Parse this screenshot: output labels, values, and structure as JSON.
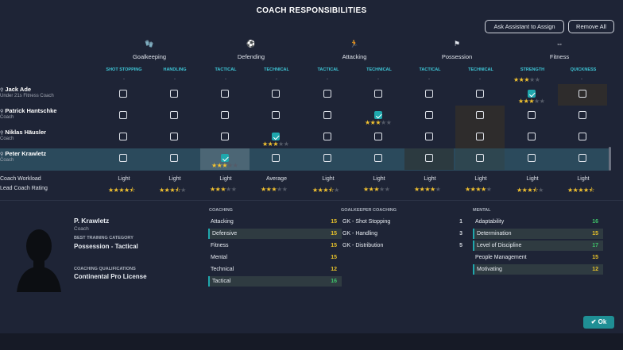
{
  "title": "COACH RESPONSIBILITIES",
  "buttons": {
    "ask": "Ask Assistant to Assign",
    "remove": "Remove All",
    "ok": "Ok"
  },
  "categories": [
    {
      "label": "Goalkeeping",
      "icon": "goalkeeper-icon"
    },
    {
      "label": "Defending",
      "icon": "tackle-icon"
    },
    {
      "label": "Attacking",
      "icon": "running-icon"
    },
    {
      "label": "Possession",
      "icon": "possession-icon"
    },
    {
      "label": "Fitness",
      "icon": "dumbbell-icon"
    }
  ],
  "subcategories": [
    "SHOT STOPPING",
    "HANDLING",
    "TACTICAL",
    "TECHNICAL",
    "TACTICAL",
    "TECHNICAL",
    "TACTICAL",
    "TECHNICAL",
    "STRENGTH",
    "QUICKNESS"
  ],
  "coaches": [
    {
      "name": "Jack Ade",
      "role": "Under 21s Fitness Coach",
      "checked": [
        false,
        false,
        false,
        false,
        false,
        false,
        false,
        false,
        true,
        false
      ]
    },
    {
      "name": "Patrick Hantschke",
      "role": "Coach",
      "checked": [
        false,
        false,
        false,
        false,
        false,
        true,
        false,
        false,
        false,
        false
      ]
    },
    {
      "name": "Niklas Häusler",
      "role": "Coach",
      "checked": [
        false,
        false,
        false,
        true,
        false,
        false,
        false,
        false,
        false,
        false
      ]
    },
    {
      "name": "Peter Krawletz",
      "role": "Coach",
      "checked": [
        false,
        false,
        true,
        false,
        false,
        false,
        false,
        false,
        false,
        false
      ]
    }
  ],
  "footer": {
    "workload_label": "Coach Workload",
    "rating_label": "Lead Coach Rating",
    "workload": [
      "Light",
      "Light",
      "Light",
      "Average",
      "Light",
      "Light",
      "Light",
      "Light",
      "Light",
      "Light"
    ],
    "rating": [
      4.5,
      3.5,
      3,
      3,
      3.5,
      3,
      4,
      4,
      3.5,
      4.5
    ]
  },
  "profile": {
    "name": "P. Krawletz",
    "role": "Coach",
    "best_cat_label": "BEST TRAINING CATEGORY",
    "best_cat": "Possession - Tactical",
    "qual_label": "COACHING QUALIFICATIONS",
    "qual": "Continental Pro License"
  },
  "coaching": {
    "header": "COACHING",
    "items": [
      {
        "name": "Attacking",
        "value": "15"
      },
      {
        "name": "Defensive",
        "value": "15"
      },
      {
        "name": "Fitness",
        "value": "15"
      },
      {
        "name": "Mental",
        "value": "15"
      },
      {
        "name": "Technical",
        "value": "12"
      },
      {
        "name": "Tactical",
        "value": "16"
      }
    ]
  },
  "gk": {
    "header": "GOALKEEPER COACHING",
    "items": [
      {
        "name": "GK - Shot Stopping",
        "value": "1"
      },
      {
        "name": "GK - Handling",
        "value": "3"
      },
      {
        "name": "GK - Distribution",
        "value": "5"
      }
    ]
  },
  "mental": {
    "header": "MENTAL",
    "items": [
      {
        "name": "Adaptability",
        "value": "16"
      },
      {
        "name": "Determination",
        "value": "15"
      },
      {
        "name": "Level of Discipline",
        "value": "17"
      },
      {
        "name": "People Management",
        "value": "15"
      },
      {
        "name": "Motivating",
        "value": "12"
      }
    ]
  }
}
